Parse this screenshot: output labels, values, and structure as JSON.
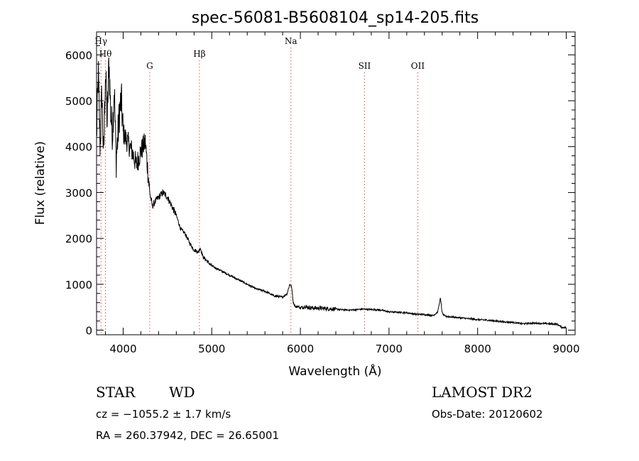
{
  "chart_data": {
    "type": "line",
    "title": "spec-56081-B5608104_sp14-205.fits",
    "xlabel": "Wavelength (Å)",
    "ylabel": "Flux (relative)",
    "xlim": [
      3700,
      9100
    ],
    "ylim": [
      -100,
      6500
    ],
    "xticks": [
      4000,
      5000,
      6000,
      7000,
      8000,
      9000
    ],
    "yticks": [
      0,
      1000,
      2000,
      3000,
      4000,
      5000,
      6000
    ],
    "grid": false,
    "line_color": "#000000",
    "marker_color": "#e05050",
    "spectrum": {
      "x": [
        3700,
        3720,
        3740,
        3760,
        3780,
        3800,
        3820,
        3840,
        3860,
        3880,
        3900,
        3920,
        3940,
        3960,
        3980,
        4000,
        4050,
        4100,
        4150,
        4200,
        4250,
        4300,
        4330,
        4360,
        4400,
        4450,
        4500,
        4550,
        4600,
        4650,
        4700,
        4750,
        4800,
        4850,
        4870,
        4900,
        4950,
        5000,
        5100,
        5200,
        5300,
        5400,
        5500,
        5600,
        5700,
        5800,
        5850,
        5880,
        5900,
        5920,
        5950,
        5980,
        6000,
        6050,
        6100,
        6200,
        6300,
        6400,
        6500,
        6600,
        6700,
        6800,
        6900,
        7000,
        7100,
        7200,
        7300,
        7400,
        7500,
        7550,
        7580,
        7600,
        7620,
        7650,
        7700,
        7800,
        7900,
        8000,
        8100,
        8200,
        8300,
        8400,
        8500,
        8600,
        8700,
        8800,
        8900,
        8950,
        9000
      ],
      "y": [
        4200,
        5600,
        4000,
        5200,
        3700,
        5700,
        4500,
        5900,
        4700,
        4300,
        5300,
        3700,
        4200,
        4800,
        5000,
        4300,
        4100,
        3900,
        3600,
        3900,
        4100,
        3000,
        2700,
        2800,
        2900,
        3000,
        2900,
        2700,
        2500,
        2200,
        2100,
        1900,
        1750,
        1700,
        1800,
        1600,
        1500,
        1400,
        1300,
        1200,
        1100,
        1000,
        900,
        850,
        750,
        720,
        800,
        1000,
        950,
        600,
        500,
        520,
        480,
        520,
        490,
        480,
        470,
        460,
        440,
        440,
        460,
        450,
        440,
        400,
        390,
        380,
        350,
        340,
        320,
        400,
        700,
        380,
        320,
        300,
        290,
        270,
        250,
        230,
        220,
        200,
        180,
        170,
        140,
        150,
        150,
        140,
        130,
        60,
        60
      ]
    },
    "lines": [
      {
        "label": "Hγ",
        "wavelength": 3750,
        "row": 1,
        "color": "#e05050"
      },
      {
        "label": "Hθ",
        "wavelength": 3800,
        "row": 2,
        "color": "#e05050"
      },
      {
        "label": "G",
        "wavelength": 4300,
        "row": 3,
        "color": "#e05050"
      },
      {
        "label": "Hβ",
        "wavelength": 4861,
        "row": 2,
        "color": "#e05050"
      },
      {
        "label": "Na",
        "wavelength": 5893,
        "row": 1,
        "color": "#e05050"
      },
      {
        "label": "SII",
        "wavelength": 6724,
        "row": 3,
        "color": "#e05050"
      },
      {
        "label": "OII",
        "wavelength": 7325,
        "row": 3,
        "color": "#e05050"
      }
    ]
  },
  "info": {
    "class": "STAR",
    "subclass": "WD",
    "cz": "cz = −1055.2 ± 1.7 km/s",
    "radec": "RA = 260.37942, DEC =  26.65001",
    "survey": "LAMOST DR2",
    "obsdate": "Obs-Date: 20120602"
  }
}
